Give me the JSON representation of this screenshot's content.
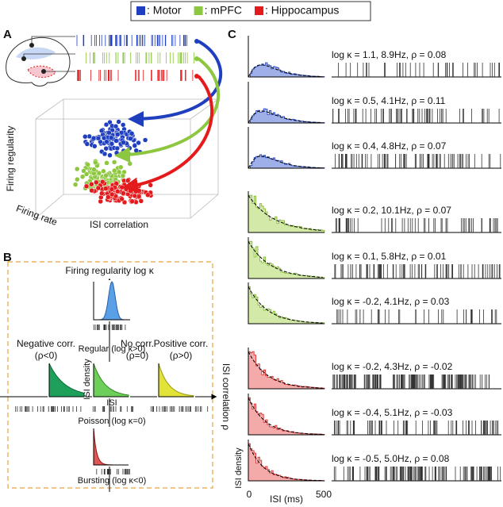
{
  "legend": [
    {
      "label": ": Motor",
      "color": "#1f3fbf"
    },
    {
      "label": ": mPFC",
      "color": "#8dc63f"
    },
    {
      "label": ": Hippocampus",
      "color": "#e41a1c"
    }
  ],
  "panel_a": {
    "label": "A",
    "z_axis": "Firing regularity",
    "x_axis": "Firing rate",
    "y_axis": "ISI correlation"
  },
  "panel_b": {
    "label": "B",
    "y_axis": "Firing regularity log κ",
    "x_axis": "ISI correlation ρ",
    "top": "Regular (log κ>0)",
    "left": [
      "Negative corr.",
      "(ρ<0)"
    ],
    "center": [
      "No corr.",
      "(ρ=0)"
    ],
    "right": [
      "Positive corr.",
      "(ρ>0)"
    ],
    "center_y": "ISI density",
    "center_x": "ISI",
    "center_caption": "Poisson (log κ=0)",
    "bottom": "Bursting (log κ<0)"
  },
  "panel_c": {
    "label": "C",
    "y_label": "ISI density",
    "x_label": "ISI (ms)",
    "x_ticks": [
      "0",
      "500"
    ],
    "groups": [
      {
        "color": "#1f3fbf",
        "fill": "#9fb0e8",
        "rows": [
          "log κ = 1.1, 8.9Hz, ρ = 0.08",
          "log κ = 0.5, 4.1Hz, ρ = 0.11",
          "log κ = 0.4, 4.8Hz, ρ = 0.07"
        ]
      },
      {
        "color": "#7fb230",
        "fill": "#d3e9a8",
        "rows": [
          "log κ = 0.2, 10.1Hz, ρ = 0.07",
          "log κ = 0.1, 5.8Hz, ρ = 0.01",
          "log κ = -0.2, 4.1Hz, ρ = 0.03"
        ]
      },
      {
        "color": "#d62728",
        "fill": "#f3aaa8",
        "rows": [
          "log κ = -0.2, 4.3Hz, ρ = -0.02",
          "log κ = -0.4, 5.1Hz, ρ = -0.03",
          "log κ = -0.5, 5.0Hz, ρ = 0.08"
        ]
      }
    ]
  }
}
